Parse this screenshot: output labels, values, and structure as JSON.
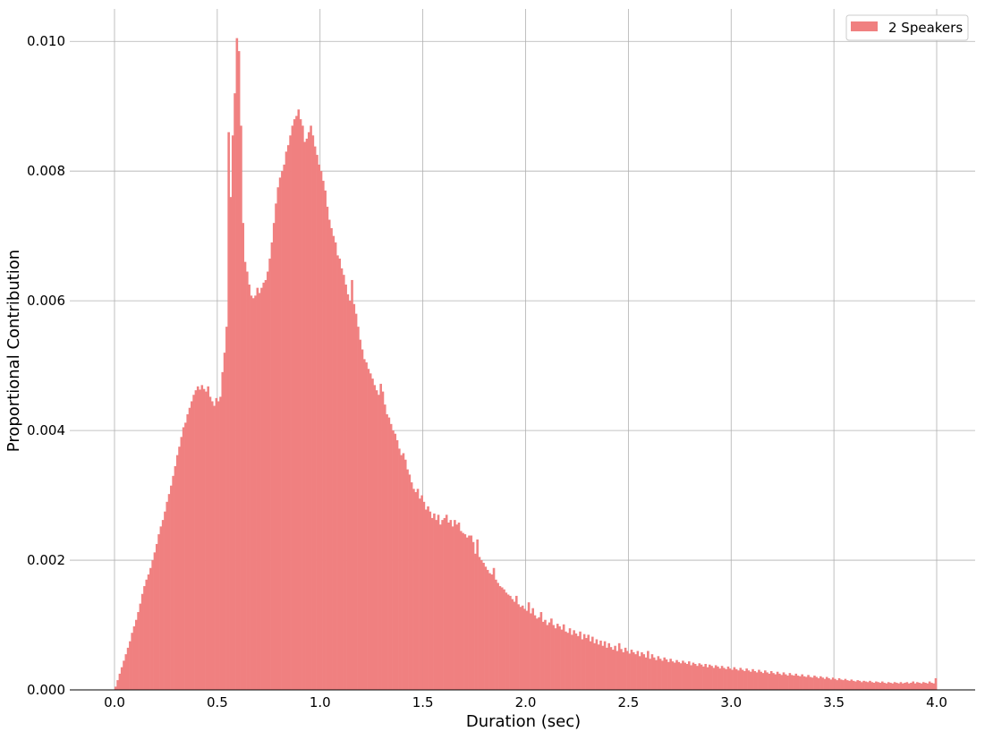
{
  "chart_data": {
    "type": "bar",
    "subtype": "histogram",
    "title": "",
    "xlabel": "Duration (sec)",
    "ylabel": "Proportional Contribution",
    "xlim": [
      -0.2,
      4.2
    ],
    "ylim": [
      0,
      0.0105
    ],
    "xticks": [
      0.0,
      0.5,
      1.0,
      1.5,
      2.0,
      2.5,
      3.0,
      3.5,
      4.0
    ],
    "xtick_labels": [
      "0.0",
      "0.5",
      "1.0",
      "1.5",
      "2.0",
      "2.5",
      "3.0",
      "3.5",
      "4.0"
    ],
    "yticks": [
      0.0,
      0.002,
      0.004,
      0.006,
      0.008,
      0.01
    ],
    "ytick_labels": [
      "0.000",
      "0.002",
      "0.004",
      "0.006",
      "0.008",
      "0.010"
    ],
    "grid": true,
    "legend_position": "top-right",
    "color": "#f08080",
    "bin_width": 0.01,
    "series": [
      {
        "name": "2 Speakers",
        "x_start": 0.0,
        "values": [
          5e-05,
          0.00015,
          0.00025,
          0.00035,
          0.00045,
          0.00055,
          0.00065,
          0.00075,
          0.00088,
          0.00098,
          0.00108,
          0.0012,
          0.00133,
          0.00148,
          0.0016,
          0.0017,
          0.00178,
          0.00188,
          0.002,
          0.00212,
          0.00225,
          0.0024,
          0.00252,
          0.00262,
          0.00275,
          0.0029,
          0.00302,
          0.00315,
          0.0033,
          0.00345,
          0.00362,
          0.00375,
          0.0039,
          0.00405,
          0.00412,
          0.00425,
          0.00435,
          0.00445,
          0.00455,
          0.00462,
          0.00468,
          0.00463,
          0.0047,
          0.00464,
          0.0046,
          0.00468,
          0.00452,
          0.00445,
          0.00438,
          0.0045,
          0.00445,
          0.00452,
          0.0049,
          0.0052,
          0.0056,
          0.0086,
          0.0076,
          0.00855,
          0.0092,
          0.01005,
          0.00985,
          0.0087,
          0.0072,
          0.0066,
          0.00645,
          0.00625,
          0.00608,
          0.00604,
          0.00608,
          0.0062,
          0.00612,
          0.0062,
          0.00628,
          0.00632,
          0.00645,
          0.00665,
          0.0069,
          0.0072,
          0.0075,
          0.00775,
          0.0079,
          0.008,
          0.0081,
          0.0083,
          0.0084,
          0.00855,
          0.0087,
          0.0088,
          0.00885,
          0.00895,
          0.0088,
          0.0087,
          0.00845,
          0.0085,
          0.0086,
          0.0087,
          0.00855,
          0.00838,
          0.00825,
          0.0081,
          0.008,
          0.00785,
          0.0077,
          0.00745,
          0.00725,
          0.00712,
          0.007,
          0.0069,
          0.0067,
          0.00665,
          0.0065,
          0.0064,
          0.00625,
          0.0061,
          0.006,
          0.00632,
          0.00595,
          0.0058,
          0.0056,
          0.0054,
          0.00525,
          0.0051,
          0.00505,
          0.00495,
          0.00488,
          0.0048,
          0.0047,
          0.00462,
          0.00455,
          0.00472,
          0.0046,
          0.0044,
          0.00425,
          0.0042,
          0.0041,
          0.004,
          0.00395,
          0.00385,
          0.00372,
          0.00362,
          0.00365,
          0.00355,
          0.0034,
          0.00332,
          0.0032,
          0.0031,
          0.00305,
          0.0031,
          0.00295,
          0.003,
          0.0029,
          0.00278,
          0.00283,
          0.00275,
          0.00265,
          0.00272,
          0.00262,
          0.0027,
          0.00255,
          0.00262,
          0.00265,
          0.0027,
          0.00258,
          0.00262,
          0.00252,
          0.00262,
          0.00255,
          0.00258,
          0.00245,
          0.00242,
          0.0024,
          0.00235,
          0.00238,
          0.00238,
          0.00228,
          0.0021,
          0.00232,
          0.00205,
          0.002,
          0.00196,
          0.0019,
          0.00185,
          0.0018,
          0.00178,
          0.00188,
          0.0017,
          0.00165,
          0.0016,
          0.00158,
          0.00155,
          0.0015,
          0.00147,
          0.00145,
          0.0014,
          0.00136,
          0.00145,
          0.00132,
          0.00128,
          0.0013,
          0.00125,
          0.00122,
          0.00135,
          0.00118,
          0.00126,
          0.00115,
          0.0011,
          0.00112,
          0.0012,
          0.00105,
          0.00108,
          0.001,
          0.00104,
          0.0011,
          0.001,
          0.00095,
          0.00102,
          0.00098,
          0.00093,
          0.00101,
          0.0009,
          0.00088,
          0.00095,
          0.00085,
          0.00092,
          0.00087,
          0.00083,
          0.0009,
          0.00078,
          0.00086,
          0.0008,
          0.00085,
          0.00075,
          0.00082,
          0.00072,
          0.00078,
          0.0007,
          0.00076,
          0.00068,
          0.00075,
          0.00065,
          0.00072,
          0.00066,
          0.00062,
          0.00068,
          0.0006,
          0.00072,
          0.00063,
          0.00058,
          0.00065,
          0.0006,
          0.00056,
          0.00062,
          0.00058,
          0.00055,
          0.0006,
          0.00052,
          0.00058,
          0.00055,
          0.0005,
          0.0006,
          0.00048,
          0.00055,
          0.0005,
          0.00046,
          0.00052,
          0.00048,
          0.00045,
          0.0005,
          0.00047,
          0.00043,
          0.00048,
          0.00044,
          0.00042,
          0.00046,
          0.00043,
          0.00041,
          0.00045,
          0.00042,
          0.0004,
          0.00044,
          0.00038,
          0.00042,
          0.0004,
          0.00037,
          0.00041,
          0.00039,
          0.00036,
          0.0004,
          0.00035,
          0.00039,
          0.00037,
          0.00034,
          0.00038,
          0.00036,
          0.00033,
          0.00037,
          0.00034,
          0.00032,
          0.00036,
          0.00033,
          0.00031,
          0.00035,
          0.00032,
          0.0003,
          0.00034,
          0.00031,
          0.00029,
          0.00033,
          0.0003,
          0.00028,
          0.00032,
          0.00029,
          0.00027,
          0.00031,
          0.00028,
          0.00026,
          0.0003,
          0.00027,
          0.00025,
          0.00029,
          0.00026,
          0.00024,
          0.00028,
          0.00025,
          0.00023,
          0.00027,
          0.00024,
          0.00022,
          0.00026,
          0.00023,
          0.00022,
          0.00025,
          0.00022,
          0.00021,
          0.00024,
          0.00021,
          0.0002,
          0.00023,
          0.0002,
          0.00019,
          0.00022,
          0.0002,
          0.00018,
          0.00021,
          0.00019,
          0.00017,
          0.0002,
          0.00018,
          0.00016,
          0.00019,
          0.00017,
          0.00015,
          0.00018,
          0.00016,
          0.00015,
          0.00017,
          0.00015,
          0.00014,
          0.00016,
          0.00014,
          0.00013,
          0.00015,
          0.00014,
          0.00012,
          0.00014,
          0.00013,
          0.00012,
          0.00014,
          0.00012,
          0.00011,
          0.00013,
          0.00012,
          0.00011,
          0.00013,
          0.00011,
          0.0001,
          0.00012,
          0.00011,
          0.0001,
          0.00012,
          0.00011,
          0.0001,
          0.00012,
          0.0001,
          0.00011,
          0.00012,
          0.0001,
          0.00011,
          0.00013,
          0.0001,
          0.00012,
          0.00011,
          0.0001,
          0.00012,
          0.00011,
          0.0001,
          0.00013,
          0.00011,
          0.0001,
          0.00018
        ]
      }
    ]
  }
}
